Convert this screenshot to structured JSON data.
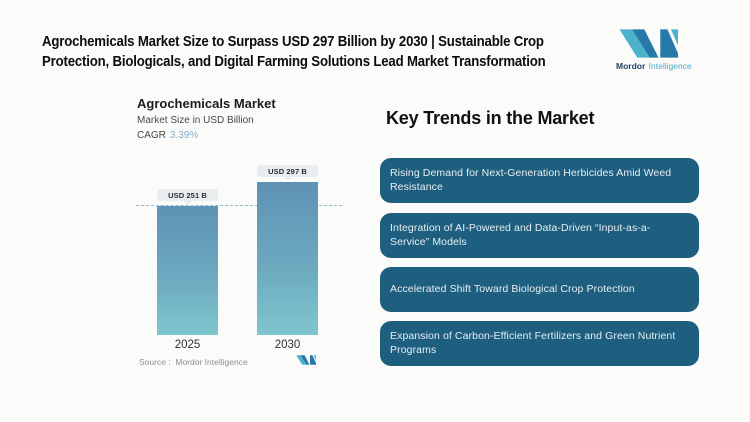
{
  "header": {
    "title_lines": [
      "Agrochemicals Market Size to Surpass USD 297 Billion by 2030 | Sustainable Crop",
      "Protection, Biologicals, and Digital Farming Solutions Lead Market Transformation"
    ],
    "logo": {
      "brand_bold": "Mordor",
      "brand_light": "Intelligence"
    }
  },
  "chart": {
    "title": "Agrochemicals Market",
    "subtitle": "Market Size in USD Billion",
    "cagr_label": "CAGR",
    "cagr_value": "3.39%",
    "source_label": "Source :  Mordor Intelligence"
  },
  "chart_data": {
    "type": "bar",
    "title": "Agrochemicals Market",
    "subtitle": "Market Size in USD Billion",
    "unit": "USD Billion",
    "cagr": "3.39%",
    "categories": [
      "2025",
      "2030"
    ],
    "values": [
      251,
      297
    ],
    "bar_labels": [
      "USD 251 B",
      "USD 297 B"
    ],
    "ylim": [
      0,
      297
    ],
    "grid": "off",
    "legend": "none",
    "annotations": [
      "dashed reference line at 2025 value (USD 251 B)"
    ]
  },
  "trends": {
    "heading": "Key Trends in the Market",
    "items": [
      "Rising Demand for Next-Generation Herbicides Amid Weed Resistance",
      "Integration of AI-Powered and Data-Driven “Input-as-a-Service” Models",
      "Accelerated Shift Toward Biological Crop Protection",
      "Expansion of Carbon-Efficient Fertilizers and Green Nutrient Programs"
    ]
  },
  "colors": {
    "brand_teal": "#4cb2cc",
    "brand_blue": "#2679a8",
    "card_background": "#1e5f80",
    "card_text": "#e7edf1",
    "bar_gradient_top": "#5f92b5",
    "bar_gradient_bottom": "#7fc6ce",
    "dashed_line": "#8cbcd2",
    "cagr_value_text": "#82aec9",
    "pill_background": "#e9edef",
    "page_background": "#fbfbfa"
  }
}
